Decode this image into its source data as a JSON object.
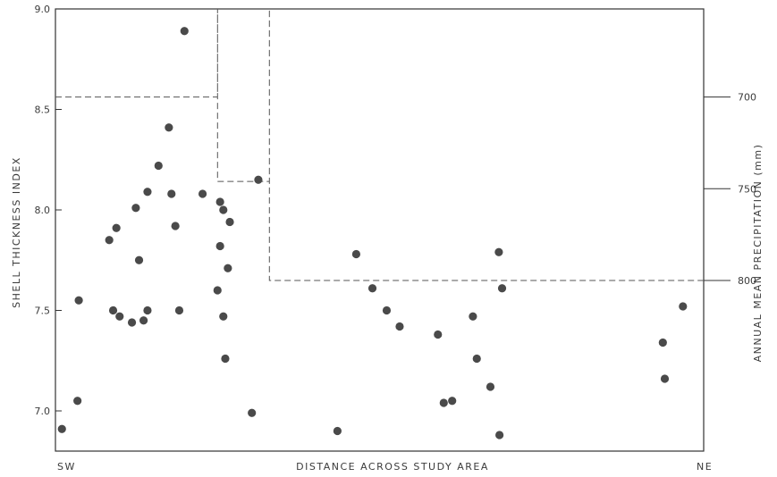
{
  "chart_data": {
    "type": "scatter",
    "title": "",
    "ylabel": "SHELL THICKNESS INDEX",
    "y2label": "ANNUAL MEAN PRECIPITATION (mm)",
    "xlabel": "DISTANCE ACROSS STUDY AREA",
    "x_ends": {
      "left": "SW",
      "right": "NE"
    },
    "xlim": [
      0,
      100
    ],
    "ylim": [
      6.8,
      9.0
    ],
    "y2lim": [
      652,
      893
    ],
    "y2_inverted": true,
    "yticks": [
      7.0,
      7.5,
      8.0,
      8.5,
      9.0
    ],
    "ytick_labels": [
      "7.0",
      "7.5",
      "8.0",
      "8.5",
      "9.0"
    ],
    "y2ticks": [
      700,
      750,
      800
    ],
    "y2tick_labels": [
      "700",
      "750",
      "800"
    ],
    "grid": false,
    "point_color": "#4a4a4a",
    "points": [
      {
        "x": 1.0,
        "y": 6.91
      },
      {
        "x": 3.4,
        "y": 7.05
      },
      {
        "x": 3.6,
        "y": 7.55
      },
      {
        "x": 8.3,
        "y": 7.85
      },
      {
        "x": 8.9,
        "y": 7.5
      },
      {
        "x": 9.4,
        "y": 7.91
      },
      {
        "x": 9.9,
        "y": 7.47
      },
      {
        "x": 11.8,
        "y": 7.44
      },
      {
        "x": 12.4,
        "y": 8.01
      },
      {
        "x": 12.9,
        "y": 7.75
      },
      {
        "x": 13.6,
        "y": 7.45
      },
      {
        "x": 14.2,
        "y": 8.09
      },
      {
        "x": 14.2,
        "y": 7.5
      },
      {
        "x": 15.9,
        "y": 8.22
      },
      {
        "x": 17.5,
        "y": 8.41
      },
      {
        "x": 17.9,
        "y": 8.08
      },
      {
        "x": 18.5,
        "y": 7.92
      },
      {
        "x": 19.1,
        "y": 7.5
      },
      {
        "x": 19.9,
        "y": 8.89
      },
      {
        "x": 22.7,
        "y": 8.08
      },
      {
        "x": 25.0,
        "y": 7.6
      },
      {
        "x": 25.4,
        "y": 8.04
      },
      {
        "x": 25.4,
        "y": 7.82
      },
      {
        "x": 25.9,
        "y": 8.0
      },
      {
        "x": 25.9,
        "y": 7.47
      },
      {
        "x": 26.2,
        "y": 7.26
      },
      {
        "x": 26.6,
        "y": 7.71
      },
      {
        "x": 26.9,
        "y": 7.94
      },
      {
        "x": 30.3,
        "y": 6.99
      },
      {
        "x": 31.3,
        "y": 8.15
      },
      {
        "x": 43.5,
        "y": 6.9
      },
      {
        "x": 46.4,
        "y": 7.78
      },
      {
        "x": 48.9,
        "y": 7.61
      },
      {
        "x": 51.1,
        "y": 7.5
      },
      {
        "x": 53.1,
        "y": 7.42
      },
      {
        "x": 59.0,
        "y": 7.38
      },
      {
        "x": 59.9,
        "y": 7.04
      },
      {
        "x": 61.2,
        "y": 7.05
      },
      {
        "x": 64.4,
        "y": 7.47
      },
      {
        "x": 65.0,
        "y": 7.26
      },
      {
        "x": 67.1,
        "y": 7.12
      },
      {
        "x": 68.4,
        "y": 7.79
      },
      {
        "x": 68.5,
        "y": 6.88
      },
      {
        "x": 68.9,
        "y": 7.61
      },
      {
        "x": 93.7,
        "y": 7.34
      },
      {
        "x": 94.0,
        "y": 7.16
      },
      {
        "x": 96.8,
        "y": 7.52
      }
    ],
    "precipitation_boundary": [
      {
        "x": 0,
        "y2": 700
      },
      {
        "x": 25.0,
        "y2": 700
      },
      {
        "x": 25.0,
        "y2": 652
      },
      {
        "x": 25.0,
        "y2": 746
      },
      {
        "x": 33.0,
        "y2": 746
      },
      {
        "x": 33.0,
        "y2": 652
      },
      {
        "x": 33.0,
        "y2": 800
      },
      {
        "x": 100,
        "y2": 800
      }
    ]
  }
}
